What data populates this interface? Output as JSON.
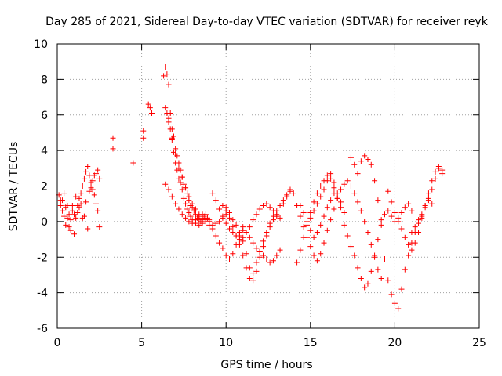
{
  "chart_data": {
    "type": "scatter",
    "title": "Day 285 of 2021, Sidereal Day-to-day VTEC variation (SDTVAR) for receiver reyk",
    "xlabel": "GPS time / hours",
    "ylabel": "SDTVAR / TECUs",
    "xlim": [
      0,
      25
    ],
    "ylim": [
      -6,
      10
    ],
    "xticks": [
      0,
      5,
      10,
      15,
      20,
      25
    ],
    "yticks": [
      -6,
      -4,
      -2,
      0,
      2,
      4,
      6,
      8,
      10
    ],
    "xtick_labels": [
      "0",
      "5",
      "10",
      "15",
      "20",
      "25"
    ],
    "ytick_labels": [
      "-6",
      "-4",
      "-2",
      "0",
      "2",
      "4",
      "6",
      "8",
      "10"
    ],
    "grid": true,
    "marker": "+",
    "color": "#ff0000",
    "series": [
      {
        "name": "sdtvar",
        "x": [
          0.1,
          0.2,
          0.3,
          0.4,
          0.5,
          0.6,
          0.7,
          0.8,
          0.9,
          1.0,
          1.1,
          1.2,
          1.3,
          1.4,
          1.5,
          1.6,
          1.7,
          1.8,
          1.9,
          2.0,
          2.1,
          2.2,
          2.3,
          2.4,
          2.5,
          0.2,
          0.4,
          0.6,
          0.8,
          1.0,
          1.2,
          1.4,
          1.6,
          1.8,
          2.0,
          2.2,
          2.4,
          0.3,
          0.5,
          0.7,
          0.9,
          1.1,
          1.3,
          1.5,
          1.7,
          1.9,
          2.1,
          2.3,
          2.5,
          3.3,
          3.3,
          4.5,
          5.1,
          5.1,
          5.4,
          5.5,
          5.6,
          6.3,
          6.4,
          6.5,
          6.6,
          6.7,
          6.8,
          6.9,
          7.0,
          7.1,
          7.2,
          7.3,
          7.4,
          7.5,
          7.6,
          7.7,
          7.8,
          7.9,
          8.0,
          8.1,
          8.2,
          8.3,
          8.4,
          8.5,
          8.6,
          8.7,
          8.8,
          8.9,
          9.0,
          6.6,
          6.7,
          6.8,
          6.9,
          7.0,
          7.1,
          7.2,
          7.3,
          7.4,
          7.5,
          7.6,
          7.7,
          7.8,
          7.9,
          8.0,
          8.2,
          8.4,
          8.6,
          8.8,
          9.0,
          6.4,
          6.5,
          6.6,
          6.8,
          7.0,
          7.2,
          7.4,
          7.6,
          7.8,
          8.0,
          8.2,
          8.4,
          8.6,
          8.8,
          9.0,
          9.2,
          9.4,
          9.6,
          9.8,
          10.0,
          10.2,
          10.4,
          10.6,
          10.8,
          11.0,
          6.4,
          6.6,
          6.8,
          7.0,
          7.2,
          7.4,
          7.6,
          7.8,
          8.0,
          8.2,
          8.4,
          8.6,
          8.8,
          9.0,
          9.2,
          9.4,
          9.6,
          9.8,
          10.0,
          9.2,
          9.4,
          9.6,
          9.8,
          10.0,
          10.2,
          10.4,
          10.6,
          10.8,
          11.0,
          11.2,
          11.4,
          11.6,
          11.8,
          12.0,
          12.2,
          12.4,
          12.6,
          12.8,
          13.0,
          13.2,
          10.0,
          10.2,
          10.4,
          10.6,
          10.8,
          11.0,
          11.2,
          11.4,
          11.6,
          11.8,
          12.0,
          12.2,
          12.4,
          12.6,
          12.8,
          13.0,
          9.8,
          10.0,
          10.2,
          10.4,
          10.6,
          10.8,
          11.0,
          11.2,
          11.4,
          11.6,
          11.8,
          12.0,
          12.2,
          12.4,
          12.6,
          12.8,
          13.0,
          13.2,
          13.4,
          13.6,
          13.8,
          11.0,
          11.2,
          11.4,
          11.6,
          11.8,
          12.0,
          12.2,
          12.4,
          12.6,
          12.8,
          13.0,
          13.2,
          13.4,
          13.6,
          13.8,
          14.0,
          14.2,
          14.4,
          14.6,
          14.8,
          15.0,
          15.2,
          15.4,
          15.6,
          15.8,
          16.0,
          16.2,
          16.4,
          16.6,
          16.8,
          17.0,
          14.2,
          14.4,
          14.6,
          14.8,
          15.0,
          15.2,
          15.4,
          15.6,
          15.8,
          16.0,
          16.2,
          16.4,
          16.6,
          16.8,
          15.0,
          15.2,
          15.4,
          15.6,
          15.8,
          16.0,
          16.2,
          16.4,
          16.6,
          16.8,
          17.0,
          14.4,
          14.6,
          14.8,
          15.0,
          15.2,
          15.4,
          15.6,
          15.8,
          16.0,
          16.2,
          16.4,
          17.2,
          17.4,
          17.6,
          17.8,
          18.0,
          18.2,
          18.4,
          18.6,
          18.8,
          19.0,
          19.2,
          17.0,
          17.2,
          17.4,
          17.6,
          17.8,
          18.0,
          18.2,
          18.4,
          18.6,
          18.8,
          19.0,
          19.2,
          19.4,
          19.6,
          19.8,
          20.0,
          20.2,
          20.4,
          20.6,
          20.8,
          21.0,
          17.4,
          17.6,
          17.8,
          18.0,
          18.2,
          18.4,
          18.6,
          18.8,
          19.0,
          19.2,
          19.4,
          19.6,
          19.8,
          20.0,
          20.2,
          20.4,
          20.6,
          20.8,
          21.0,
          21.2,
          21.4,
          21.6,
          21.8,
          22.0,
          22.2,
          22.4,
          22.6,
          22.8,
          19.6,
          19.8,
          20.0,
          20.2,
          20.4,
          20.6,
          20.8,
          21.0,
          21.2,
          21.4,
          21.6,
          21.8,
          22.0,
          22.2,
          21.0,
          21.2,
          21.4,
          21.6,
          21.8,
          22.0,
          22.2,
          22.4,
          22.6,
          22.8
        ],
        "y": [
          1.5,
          0.9,
          1.2,
          0.3,
          0.8,
          0.2,
          -0.3,
          0.1,
          0.6,
          0.4,
          0.2,
          0.9,
          1.3,
          1.6,
          2.0,
          2.4,
          2.8,
          3.1,
          2.6,
          2.2,
          1.8,
          1.5,
          1.0,
          0.6,
          -0.3,
          1.2,
          1.6,
          0.9,
          -0.5,
          -0.7,
          0.5,
          1.0,
          0.3,
          -0.4,
          1.9,
          2.6,
          2.9,
          0.6,
          -0.2,
          0.4,
          0.9,
          1.4,
          0.8,
          0.2,
          1.1,
          1.7,
          2.3,
          2.7,
          2.4,
          4.7,
          4.1,
          3.3,
          5.1,
          4.7,
          6.6,
          6.4,
          6.1,
          8.2,
          8.7,
          8.3,
          7.7,
          6.1,
          5.2,
          4.8,
          4.1,
          3.7,
          3.3,
          2.9,
          2.5,
          2.1,
          1.9,
          1.6,
          1.2,
          0.9,
          0.8,
          0.6,
          0.4,
          0.2,
          0.1,
          0.0,
          0.1,
          0.3,
          0.4,
          0.2,
          0.0,
          5.8,
          5.2,
          4.6,
          3.9,
          3.3,
          2.9,
          2.4,
          2.2,
          1.8,
          1.3,
          1.0,
          0.7,
          0.5,
          0.3,
          0.1,
          -0.1,
          -0.2,
          -0.1,
          0.0,
          0.1,
          6.4,
          6.1,
          5.6,
          4.7,
          3.8,
          3.0,
          2.5,
          1.9,
          1.4,
          1.0,
          0.7,
          0.4,
          0.2,
          0.1,
          -0.2,
          -0.4,
          -0.8,
          -1.2,
          -1.5,
          -1.9,
          -2.1,
          -1.8,
          -1.3,
          -0.8,
          -0.5,
          2.1,
          1.8,
          1.4,
          1.0,
          0.7,
          0.4,
          0.2,
          0.0,
          -0.1,
          0.1,
          0.3,
          0.4,
          0.2,
          0.0,
          -0.2,
          -0.1,
          0.0,
          0.2,
          0.4,
          1.6,
          1.2,
          0.7,
          0.3,
          -0.1,
          -0.4,
          -0.6,
          -0.8,
          -1.0,
          -0.9,
          -0.6,
          -0.3,
          0.1,
          0.4,
          0.7,
          0.9,
          1.0,
          0.8,
          0.6,
          0.4,
          0.2,
          0.8,
          0.5,
          0.1,
          -0.2,
          -0.6,
          -1.1,
          -1.8,
          -2.6,
          -3.3,
          -2.8,
          -2.0,
          -1.4,
          -0.8,
          -0.3,
          0.1,
          0.3,
          0.9,
          0.6,
          0.2,
          -0.3,
          -0.8,
          -1.3,
          -1.9,
          -2.6,
          -3.2,
          -2.9,
          -2.3,
          -1.7,
          -1.1,
          -0.6,
          -0.1,
          0.3,
          0.6,
          0.9,
          1.2,
          1.5,
          1.7,
          -0.3,
          -0.6,
          -0.9,
          -1.2,
          -1.5,
          -1.7,
          -1.9,
          -2.1,
          -2.3,
          -2.2,
          -1.9,
          -1.6,
          1.0,
          1.4,
          1.8,
          1.6,
          0.9,
          0.3,
          -0.3,
          -0.9,
          -1.4,
          -1.9,
          -2.2,
          -1.8,
          -1.2,
          -0.5,
          0.1,
          0.7,
          1.3,
          1.8,
          2.1,
          -2.3,
          -1.6,
          -0.9,
          -0.2,
          0.5,
          1.1,
          1.6,
          2.0,
          2.3,
          2.6,
          2.4,
          1.9,
          1.3,
          0.8,
          0.2,
          0.6,
          1.0,
          1.4,
          1.8,
          2.3,
          2.7,
          2.2,
          1.6,
          1.1,
          0.5,
          0.9,
          0.5,
          0.0,
          -0.5,
          -0.9,
          -0.6,
          -0.2,
          0.3,
          0.8,
          1.2,
          1.6,
          2.3,
          2.0,
          1.6,
          1.1,
          0.6,
          0.0,
          -0.6,
          -1.3,
          -2.0,
          -2.7,
          -3.2,
          -0.2,
          -0.8,
          -1.4,
          -1.9,
          -2.6,
          -3.2,
          -3.7,
          -3.5,
          -2.8,
          -1.9,
          -1.0,
          -0.2,
          0.4,
          0.6,
          0.3,
          0.0,
          0.2,
          0.5,
          0.8,
          1.0,
          0.6,
          3.6,
          3.2,
          2.7,
          3.4,
          3.7,
          3.5,
          3.2,
          2.3,
          1.2,
          0.1,
          -2.1,
          -3.3,
          -4.1,
          -4.6,
          -4.9,
          -3.8,
          -2.7,
          -1.9,
          -1.2,
          -0.6,
          -0.1,
          0.3,
          0.9,
          1.6,
          2.3,
          2.8,
          3.0,
          2.9,
          1.7,
          1.1,
          0.5,
          0.0,
          -0.4,
          -0.9,
          -1.3,
          -1.6,
          -1.2,
          -0.6,
          0.2,
          0.9,
          1.3,
          1.0,
          -0.6,
          -0.3,
          0.1,
          0.4,
          0.8,
          1.2,
          1.8,
          2.4,
          3.1,
          2.7
        ]
      }
    ]
  }
}
